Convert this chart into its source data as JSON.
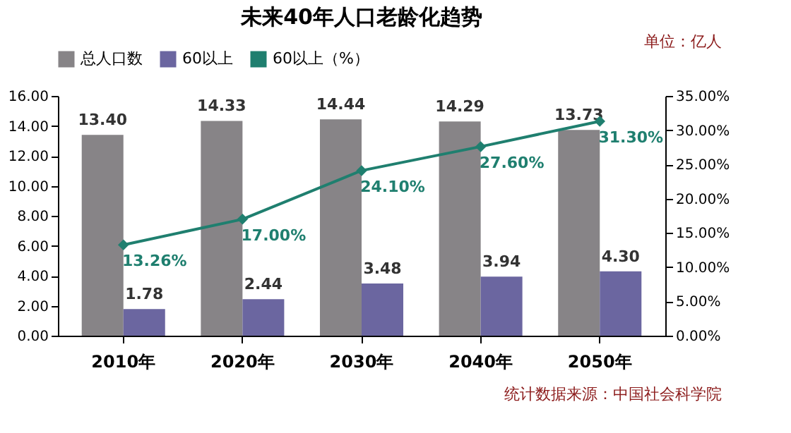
{
  "chart_data": {
    "type": "bar",
    "title": "未来40年人口老龄化趋势",
    "categories": [
      "2010年",
      "2020年",
      "2030年",
      "2040年",
      "2050年"
    ],
    "series": [
      {
        "name": "总人口数",
        "color": "#878487",
        "values": [
          13.4,
          14.33,
          14.44,
          14.29,
          13.73
        ],
        "value_labels": [
          "13.40",
          "14.33",
          "14.44",
          "14.29",
          "13.73"
        ]
      },
      {
        "name": "60以上",
        "color": "#6b66a0",
        "values": [
          1.78,
          2.44,
          3.48,
          3.94,
          4.3
        ],
        "value_labels": [
          "1.78",
          "2.44",
          "3.48",
          "3.94",
          "4.30"
        ]
      },
      {
        "name": "60以上（%）",
        "type": "line",
        "axis": "y2",
        "color": "#1f7f6f",
        "values": [
          13.26,
          17.0,
          24.1,
          27.6,
          31.3
        ],
        "value_labels": [
          "13.26%",
          "17.00%",
          "24.10%",
          "27.60%",
          "31.30%"
        ]
      }
    ],
    "ylim": [
      0,
      16
    ],
    "yticks": [
      {
        "value": 0,
        "label": "0.00"
      },
      {
        "value": 2,
        "label": "2.00"
      },
      {
        "value": 4,
        "label": "4.00"
      },
      {
        "value": 6,
        "label": "6.00"
      },
      {
        "value": 8,
        "label": "8.00"
      },
      {
        "value": 10,
        "label": "10.00"
      },
      {
        "value": 12,
        "label": "12.00"
      },
      {
        "value": 14,
        "label": "14.00"
      },
      {
        "value": 16,
        "label": "16.00"
      }
    ],
    "y2lim": [
      0,
      35
    ],
    "y2ticks": [
      {
        "value": 0,
        "label": "0.00%"
      },
      {
        "value": 5,
        "label": "5.00%"
      },
      {
        "value": 10,
        "label": "10.00%"
      },
      {
        "value": 15,
        "label": "15.00%"
      },
      {
        "value": 20,
        "label": "20.00%"
      },
      {
        "value": 25,
        "label": "25.00%"
      },
      {
        "value": 30,
        "label": "30.00%"
      },
      {
        "value": 35,
        "label": "35.00%"
      }
    ],
    "annotations": [
      "单位：亿人",
      "统计数据来源：中国社会科学院"
    ],
    "legend": "top",
    "marker": "diamond",
    "line_style": "solid",
    "grid": false
  }
}
